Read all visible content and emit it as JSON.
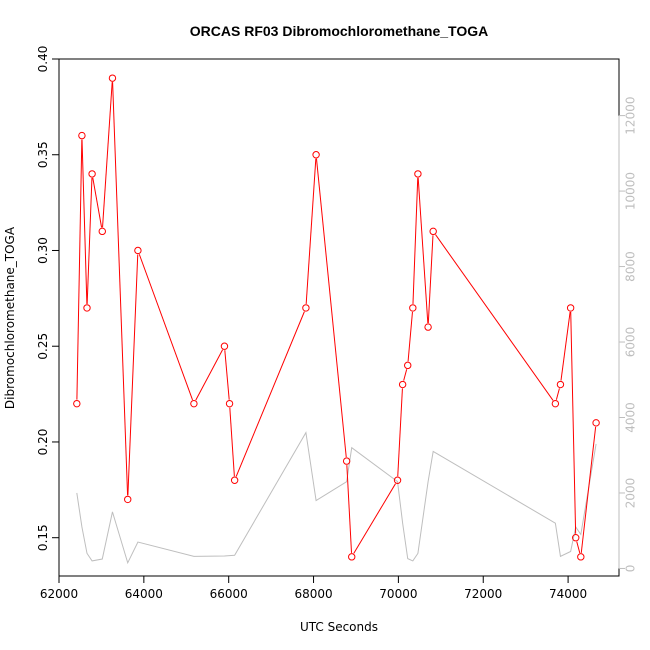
{
  "chart_data": {
    "type": "line",
    "title": "ORCAS RF03 Dibromochloromethane_TOGA",
    "xlabel": "UTC Seconds",
    "ylabel": "Dibromochloromethane_TOGA",
    "xlim": [
      62000,
      75200
    ],
    "ylim": [
      0.13,
      0.4
    ],
    "y2lim": [
      -200,
      13500
    ],
    "x_ticks": [
      62000,
      64000,
      66000,
      68000,
      70000,
      72000,
      74000
    ],
    "y_ticks": [
      0.15,
      0.2,
      0.25,
      0.3,
      0.35,
      0.4
    ],
    "y2_ticks": [
      0,
      2000,
      4000,
      6000,
      8000,
      10000,
      12000
    ],
    "colors": {
      "primary": "#ff0000",
      "secondary": "#bebebe"
    },
    "series": [
      {
        "axis": "left",
        "x": [
          62420,
          62540,
          62660,
          62780,
          63020,
          63260,
          63620,
          63860,
          65180,
          65900,
          66020,
          66140,
          67820,
          68060,
          68780,
          68900,
          69980,
          70100,
          70220,
          70340,
          70460,
          70700,
          70820,
          73700,
          73820,
          74060,
          74180,
          74300,
          74660
        ],
        "y": [
          0.22,
          0.36,
          0.27,
          0.34,
          0.31,
          0.39,
          0.17,
          0.3,
          0.22,
          0.25,
          0.22,
          0.18,
          0.27,
          0.35,
          0.19,
          0.14,
          0.18,
          0.23,
          0.24,
          0.27,
          0.34,
          0.26,
          0.31,
          0.22,
          0.23,
          0.27,
          0.15,
          0.14,
          0.21
        ]
      },
      {
        "axis": "right",
        "x": [
          62420,
          62540,
          62660,
          62780,
          63020,
          63260,
          63620,
          63860,
          65180,
          65900,
          66020,
          66140,
          67820,
          68060,
          68780,
          68900,
          69980,
          70100,
          70220,
          70340,
          70460,
          70700,
          70820,
          73700,
          73820,
          74060,
          74180,
          74300,
          74660
        ],
        "y": [
          2000,
          1100,
          400,
          200,
          250,
          1500,
          150,
          700,
          320,
          330,
          340,
          350,
          3600,
          1800,
          2300,
          3200,
          2300,
          1200,
          260,
          200,
          400,
          2300,
          3100,
          1200,
          320,
          450,
          1100,
          900,
          3300
        ]
      }
    ]
  }
}
